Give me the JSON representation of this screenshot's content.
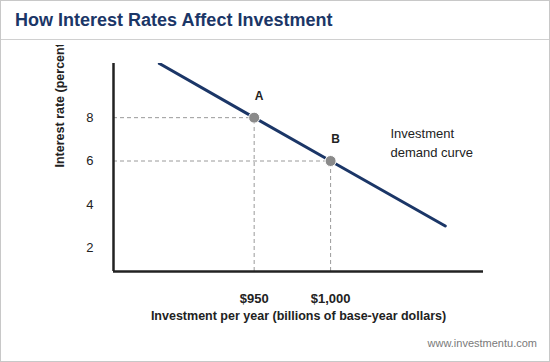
{
  "chart_data": {
    "type": "line",
    "title": "How Interest Rates Affect Investment",
    "x_label": "Investment per year (billions of base-year dollars)",
    "y_label": "Interest rate (percent)",
    "caption": "www.investmentu.com",
    "x": [
      888,
      950,
      1000,
      1075
    ],
    "series": [
      {
        "name": "Investment demand curve",
        "color": "#1b3667",
        "values": [
          10.5,
          8,
          6,
          3
        ]
      }
    ],
    "points": [
      {
        "label": "A",
        "x": 950,
        "y": 8
      },
      {
        "label": "B",
        "x": 1000,
        "y": 6
      }
    ],
    "points_color": "#8a8a8a",
    "xlim": [
      858,
      1100
    ],
    "ylim": [
      0.9,
      10.5
    ],
    "xticks": [
      {
        "value": 950,
        "label": "$950"
      },
      {
        "value": 1000,
        "label": "$1,000"
      }
    ],
    "yticks": [
      2,
      4,
      6,
      8
    ],
    "grid": false
  }
}
